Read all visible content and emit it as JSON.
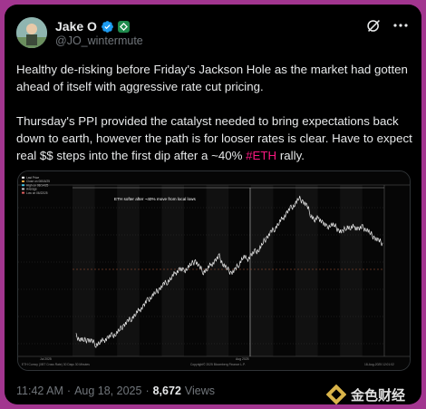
{
  "author": {
    "display_name": "Jake O",
    "handle": "@JO_wintermute"
  },
  "post": {
    "paragraphs": [
      {
        "text": "Healthy de-risking before Friday's Jackson Hole as the market had gotten ahead of itself with aggressive rate cut pricing."
      },
      {
        "text_before": "Thursday's PPI provided the catalyst needed to bring  expectations back down to earth, however the path is for looser rates is clear. Have to expect real $$ steps into the first dip after a ~40% ",
        "hashtag": "#ETH",
        "text_after": " rally."
      }
    ]
  },
  "chart_data": {
    "type": "line",
    "title": "",
    "annotation": "ETH softer after ~40% move from local lows",
    "x_tick_labels": [
      "Jul 2025",
      "Aug 2025"
    ],
    "legend": [
      "Last Price",
      "Close on 08/18/25",
      "High on 08/14/25",
      "Average",
      "Low on 06/22/25"
    ],
    "footer_left": "ETH Curncy (XBT Cross Rate) 30 Days 30 Minutes",
    "footer_center": "Copyright© 2025 Bloomberg Finance L.P.",
    "footer_right": "18-Aug-2025 12:01:02",
    "series": [
      {
        "values": [
          2510,
          2470,
          2440,
          2460,
          2420,
          2380,
          2410,
          2450,
          2490,
          2520,
          2560,
          2620,
          2700,
          2750,
          2820,
          2880,
          2950,
          3020,
          3100,
          3180,
          3230,
          3300,
          3360,
          3420,
          3480,
          3560,
          3620,
          3580,
          3650,
          3700,
          3760,
          3640,
          3580,
          3620,
          3700,
          3760,
          3820,
          3700,
          3620,
          3560,
          3600,
          3720,
          3820,
          3780,
          3850,
          3900,
          3950,
          4050,
          4150,
          4220,
          4300,
          4380,
          4460,
          4550,
          4620,
          4700,
          4780,
          4740,
          4650,
          4520,
          4420,
          4470,
          4380,
          4300,
          4360,
          4330,
          4260,
          4220,
          4330,
          4290,
          4320,
          4280,
          4300,
          4280,
          4200,
          4140,
          4080,
          4050
        ]
      }
    ]
  },
  "meta": {
    "time": "11:42 AM",
    "separator": "·",
    "date": "Aug 18, 2025",
    "views_count": "8,672",
    "views_label": "Views"
  },
  "watermark": {
    "text": "金色财经"
  },
  "colors": {
    "background": "#a2358f",
    "card": "#000000",
    "text": "#e7e9ea",
    "muted": "#71767b",
    "hashtag": "#f91880",
    "verified": "#1d9bf0"
  }
}
